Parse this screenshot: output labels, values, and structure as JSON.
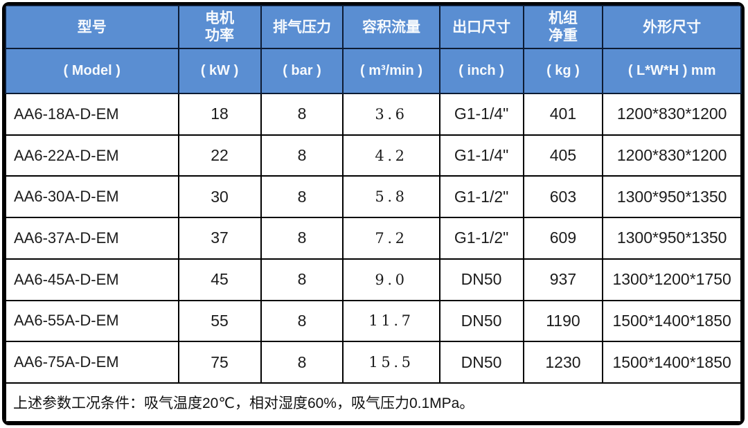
{
  "colors": {
    "header_bg": "#5a8ed2",
    "header_text": "#ffffff",
    "border": "#000000",
    "body_text": "#1c1c1c",
    "page_bg": "#ffffff"
  },
  "table": {
    "columns": [
      {
        "cn": "型号",
        "unit": "( Model )"
      },
      {
        "cn_top": "电机",
        "cn_bottom": "功率",
        "unit": "( kW )"
      },
      {
        "cn": "排气压力",
        "unit": "( bar )"
      },
      {
        "cn": "容积流量",
        "unit": "( m³/min )"
      },
      {
        "cn": "出口尺寸",
        "unit": "( inch )"
      },
      {
        "cn_top": "机组",
        "cn_bottom": "净重",
        "unit": "( kg )"
      },
      {
        "cn": "外形尺寸",
        "unit": "( L*W*H ) mm"
      }
    ],
    "rows": [
      {
        "model": "AA6-18A-D-EM",
        "power_kw": "18",
        "pressure_bar": "8",
        "flow_m3_min": "3.6",
        "outlet": "G1-1/4\"",
        "weight_kg": "401",
        "dimensions": "1200*830*1200"
      },
      {
        "model": "AA6-22A-D-EM",
        "power_kw": "22",
        "pressure_bar": "8",
        "flow_m3_min": "4.2",
        "outlet": "G1-1/4\"",
        "weight_kg": "405",
        "dimensions": "1200*830*1200"
      },
      {
        "model": "AA6-30A-D-EM",
        "power_kw": "30",
        "pressure_bar": "8",
        "flow_m3_min": "5.8",
        "outlet": "G1-1/2\"",
        "weight_kg": "603",
        "dimensions": "1300*950*1350"
      },
      {
        "model": "AA6-37A-D-EM",
        "power_kw": "37",
        "pressure_bar": "8",
        "flow_m3_min": "7.2",
        "outlet": "G1-1/2\"",
        "weight_kg": "609",
        "dimensions": "1300*950*1350"
      },
      {
        "model": "AA6-45A-D-EM",
        "power_kw": "45",
        "pressure_bar": "8",
        "flow_m3_min": "9.0",
        "outlet": "DN50",
        "weight_kg": "937",
        "dimensions": "1300*1200*1750"
      },
      {
        "model": "AA6-55A-D-EM",
        "power_kw": "55",
        "pressure_bar": "8",
        "flow_m3_min": "11.7",
        "outlet": "DN50",
        "weight_kg": "1190",
        "dimensions": "1500*1400*1850"
      },
      {
        "model": "AA6-75A-D-EM",
        "power_kw": "75",
        "pressure_bar": "8",
        "flow_m3_min": "15.5",
        "outlet": "DN50",
        "weight_kg": "1230",
        "dimensions": "1500*1400*1850"
      }
    ],
    "footnote": "上述参数工况条件：吸气温度20℃，相对湿度60%，吸气压力0.1MPa。"
  }
}
